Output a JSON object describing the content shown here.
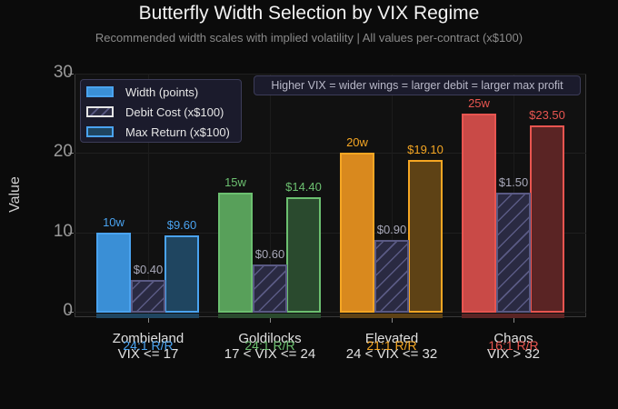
{
  "title": "Butterfly Width Selection by VIX Regime",
  "subtitle": "Recommended width scales with implied volatility  |  All values per-contract (x$100)",
  "annotation": "Higher VIX = wider wings = larger debit = larger max profit",
  "legend": [
    {
      "label": "Width (points)"
    },
    {
      "label": "Debit Cost (x$100)"
    },
    {
      "label": "Max Return (x$100)"
    }
  ],
  "yaxis": {
    "label": "Value",
    "ticks": [
      "0",
      "10",
      "20",
      "30"
    ]
  },
  "groups": [
    {
      "name": "Zombieland",
      "range": "VIX <= 17",
      "rr": "24:1 R/R",
      "width_label": "10w",
      "debit_label": "$0.40",
      "return_label": "$9.60",
      "color": "#3a8fd6",
      "border": "#4aa3f0",
      "return_fill": "#1f4560"
    },
    {
      "name": "Goldilocks",
      "range": "17 < VIX <= 24",
      "rr": "24:1 R/R",
      "width_label": "15w",
      "debit_label": "$0.60",
      "return_label": "$14.40",
      "color": "#58a05a",
      "border": "#6cc070",
      "return_fill": "#2a4a2e"
    },
    {
      "name": "Elevated",
      "range": "24 < VIX <= 32",
      "rr": "21:1 R/R",
      "width_label": "20w",
      "debit_label": "$0.90",
      "return_label": "$19.10",
      "color": "#d9891e",
      "border": "#f5a623",
      "return_fill": "#5e4215"
    },
    {
      "name": "Chaos",
      "range": "VIX > 32",
      "rr": "16:1 R/R",
      "width_label": "25w",
      "debit_label": "$1.50",
      "return_label": "$23.50",
      "color": "#c94a47",
      "border": "#e85550",
      "return_fill": "#5a2424"
    }
  ],
  "chart_data": {
    "type": "bar",
    "title": "Butterfly Width Selection by VIX Regime",
    "subtitle": "Recommended width scales with implied volatility | All values per-contract (x$100)",
    "xlabel": "",
    "ylabel": "Value",
    "ylim": [
      0,
      30
    ],
    "yticks": [
      0,
      10,
      20,
      30
    ],
    "grid": true,
    "legend_position": "upper left",
    "categories": [
      "Zombieland\nVIX <= 17",
      "Goldilocks\n17 < VIX <= 24",
      "Elevated\n24 < VIX <= 32",
      "Chaos\nVIX > 32"
    ],
    "series": [
      {
        "name": "Width (points)",
        "values": [
          10,
          15,
          20,
          25
        ],
        "labels": [
          "10w",
          "15w",
          "20w",
          "25w"
        ]
      },
      {
        "name": "Debit Cost (x$100)",
        "values": [
          0.4,
          0.6,
          0.9,
          1.5
        ],
        "drawn_height_scaled_x10": [
          4,
          6,
          9,
          15
        ],
        "labels": [
          "$0.40",
          "$0.60",
          "$0.90",
          "$1.50"
        ]
      },
      {
        "name": "Max Return (x$100)",
        "values": [
          9.6,
          14.4,
          19.1,
          23.5
        ],
        "labels": [
          "$9.60",
          "$14.40",
          "$19.10",
          "$23.50"
        ]
      }
    ],
    "annotations": [
      "24:1 R/R",
      "24:1 R/R",
      "21:1 R/R",
      "16:1 R/R",
      "Higher VIX = wider wings = larger debit = larger max profit"
    ]
  }
}
